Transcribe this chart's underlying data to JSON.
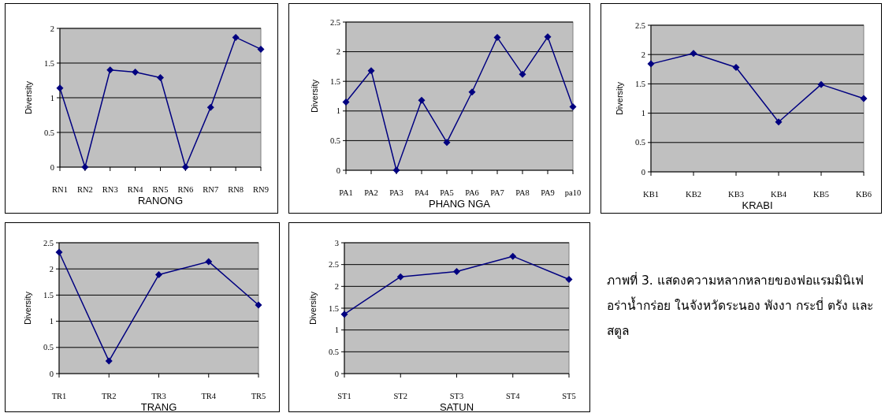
{
  "chart_data": [
    {
      "type": "line",
      "xlabel": "RANONG",
      "ylabel": "Diversity",
      "categories": [
        "RN1",
        "RN2",
        "RN3",
        "RN4",
        "RN5",
        "RN6",
        "RN7",
        "RN8",
        "RN9"
      ],
      "values": [
        1.14,
        0,
        1.4,
        1.37,
        1.29,
        0,
        0.86,
        1.87,
        1.7
      ],
      "color": "#000080",
      "ylim": [
        0,
        2
      ],
      "yticks": [
        0,
        0.5,
        1,
        1.5,
        2
      ],
      "grid": "y",
      "marker": "diamond",
      "line_style": "solid"
    },
    {
      "type": "line",
      "xlabel": "PHANG NGA",
      "ylabel": "Diversity",
      "categories": [
        "PA1",
        "PA2",
        "PA3",
        "PA4",
        "PA5",
        "PA6",
        "PA7",
        "PA8",
        "PA9",
        "pa10"
      ],
      "values": [
        1.15,
        1.68,
        0,
        1.18,
        0.47,
        1.32,
        2.24,
        1.62,
        2.25,
        1.07
      ],
      "color": "#000080",
      "ylim": [
        0,
        2.5
      ],
      "yticks": [
        0,
        0.5,
        1,
        1.5,
        2,
        2.5
      ],
      "grid": "y",
      "marker": "diamond",
      "line_style": "solid"
    },
    {
      "type": "line",
      "xlabel": "KRABI",
      "ylabel": "Diversity",
      "categories": [
        "KB1",
        "KB2",
        "KB3",
        "KB4",
        "KB5",
        "KB6"
      ],
      "values": [
        1.84,
        2.02,
        1.78,
        0.85,
        1.49,
        1.25
      ],
      "color": "#000080",
      "ylim": [
        0,
        2.5
      ],
      "yticks": [
        0,
        0.5,
        1,
        1.5,
        2,
        2.5
      ],
      "grid": "y",
      "marker": "diamond",
      "line_style": "solid"
    },
    {
      "type": "line",
      "xlabel": "TRANG",
      "ylabel": "Diversity",
      "categories": [
        "TR1",
        "TR2",
        "TR3",
        "TR4",
        "TR5"
      ],
      "values": [
        2.32,
        0.24,
        1.89,
        2.14,
        1.31
      ],
      "color": "#000080",
      "ylim": [
        0,
        2.5
      ],
      "yticks": [
        0,
        0.5,
        1,
        1.5,
        2,
        2.5
      ],
      "grid": "y",
      "marker": "diamond",
      "line_style": "solid"
    },
    {
      "type": "line",
      "xlabel": "SATUN",
      "ylabel": "Diversity",
      "categories": [
        "ST1",
        "ST2",
        "ST3",
        "ST4",
        "ST5"
      ],
      "values": [
        1.36,
        2.22,
        2.34,
        2.69,
        2.16
      ],
      "color": "#000080",
      "ylim": [
        0,
        3
      ],
      "yticks": [
        0,
        0.5,
        1,
        1.5,
        2,
        2.5,
        3
      ],
      "grid": "y",
      "marker": "diamond",
      "line_style": "solid"
    },
    {
      "type": "other",
      "annotations": [
        "ภาพที่ 3. แสดงความหลากหลายของฟอแรมมินิเฟอร่าน้ำกร่อย ในจังหวัดระนอง พังงา กระบี่ ตรัง และสตูล"
      ]
    }
  ]
}
